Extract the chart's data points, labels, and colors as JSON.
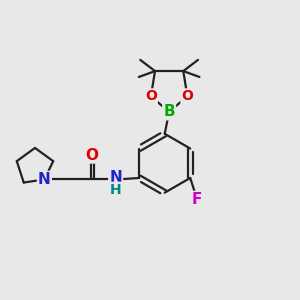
{
  "bg_color": "#e8e8e8",
  "line_color": "#222222",
  "bond_width": 1.6,
  "atom_colors": {
    "O": "#dd0000",
    "N": "#2222cc",
    "B": "#00aa00",
    "F": "#cc00cc",
    "H": "#008888",
    "C": "#222222"
  },
  "font_size": 11
}
